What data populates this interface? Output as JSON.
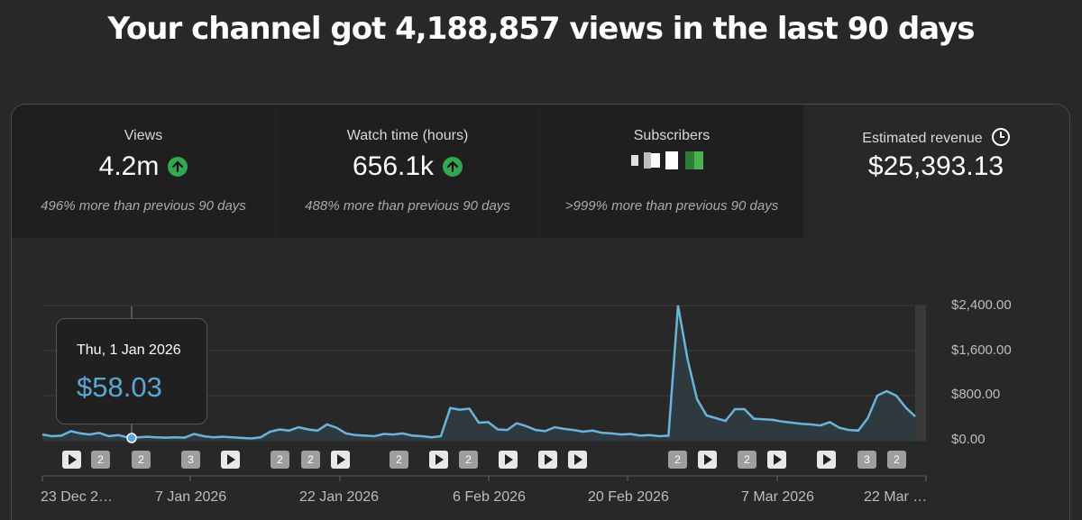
{
  "headline": "Your channel got 4,188,857 views in the last 90 days",
  "metrics": [
    {
      "label": "Views",
      "value": "4.2m",
      "trend": "up",
      "compare": "496% more than previous 90 days"
    },
    {
      "label": "Watch time (hours)",
      "value": "656.1k",
      "trend": "up",
      "compare": "488% more than previous 90 days"
    },
    {
      "label": "Subscribers",
      "value": "",
      "trend": "up",
      "compare": ">999% more than previous 90 days"
    },
    {
      "label": "Estimated revenue",
      "value": "$25,393.13"
    }
  ],
  "tooltip": {
    "date": "Thu, 1 Jan 2026",
    "value": "$58.03"
  },
  "colors": {
    "line": "#6ab4dc",
    "accent": "#5aa6d4",
    "up": "#33a852"
  },
  "markers": [
    "play",
    "2",
    "2",
    "3",
    "play",
    "2",
    "2",
    "play",
    "2",
    "play",
    "2",
    "play",
    "play",
    "play",
    "2",
    "play",
    "2",
    "play",
    "play",
    "3",
    "2"
  ],
  "chart_data": {
    "type": "area",
    "title": "Estimated revenue",
    "x_labels": [
      "23 Dec 2…",
      "7 Jan 2026",
      "22 Jan 2026",
      "6 Feb 2026",
      "20 Feb 2026",
      "7 Mar 2026",
      "22 Mar …"
    ],
    "y_ticks": [
      "$2,400.00",
      "$1,600.00",
      "$800.00",
      "$0.00"
    ],
    "ylim": [
      0,
      2400
    ],
    "values": [
      110,
      80,
      90,
      170,
      130,
      110,
      140,
      80,
      100,
      60,
      58,
      70,
      60,
      55,
      60,
      55,
      120,
      80,
      60,
      70,
      60,
      50,
      40,
      60,
      160,
      200,
      180,
      240,
      200,
      180,
      290,
      230,
      130,
      100,
      90,
      80,
      120,
      110,
      130,
      90,
      80,
      60,
      80,
      580,
      550,
      570,
      320,
      330,
      200,
      190,
      310,
      260,
      190,
      170,
      240,
      210,
      190,
      160,
      180,
      140,
      130,
      110,
      120,
      90,
      100,
      80,
      90,
      2400,
      1450,
      740,
      450,
      400,
      350,
      560,
      560,
      390,
      380,
      370,
      340,
      320,
      300,
      290,
      270,
      330,
      230,
      190,
      180,
      400,
      800,
      880,
      800,
      590,
      430
    ]
  }
}
